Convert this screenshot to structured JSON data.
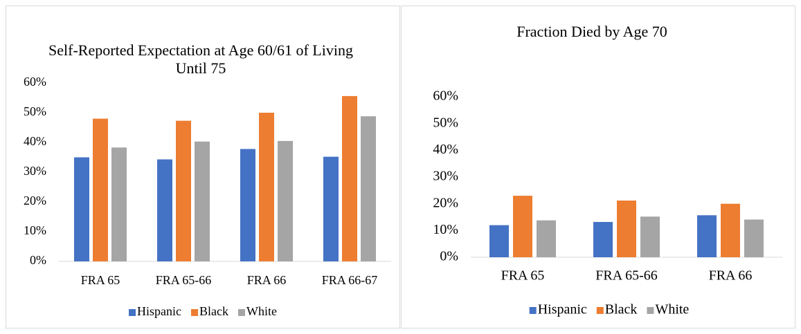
{
  "chart_data": [
    {
      "type": "bar",
      "title": "Self-Reported Expectation at Age 60/61 of Living Until 75",
      "categories": [
        "FRA 65",
        "FRA 65-66",
        "FRA 66",
        "FRA 66-67"
      ],
      "series": [
        {
          "name": "Hispanic",
          "color": "#4472c4",
          "values": [
            35,
            34.3,
            37.8,
            35.2
          ]
        },
        {
          "name": "Black",
          "color": "#ed7d31",
          "values": [
            48,
            47.3,
            50,
            55.6
          ]
        },
        {
          "name": "White",
          "color": "#a5a5a5",
          "values": [
            38.3,
            40.3,
            40.5,
            48.8
          ]
        }
      ],
      "ylim": [
        0,
        60
      ],
      "yticks": [
        {
          "value": 0,
          "label": "0%"
        },
        {
          "value": 10,
          "label": "10%"
        },
        {
          "value": 20,
          "label": "20%"
        },
        {
          "value": 30,
          "label": "30%"
        },
        {
          "value": 40,
          "label": "40%"
        },
        {
          "value": 50,
          "label": "50%"
        },
        {
          "value": 60,
          "label": "60%"
        }
      ],
      "legend": "bottom"
    },
    {
      "type": "bar",
      "title": "Fraction Died by Age 70",
      "categories": [
        "FRA 65",
        "FRA 65-66",
        "FRA 66"
      ],
      "series": [
        {
          "name": "Hispanic",
          "color": "#4472c4",
          "values": [
            12,
            13.2,
            15.7
          ]
        },
        {
          "name": "Black",
          "color": "#ed7d31",
          "values": [
            23,
            21.2,
            20
          ]
        },
        {
          "name": "White",
          "color": "#a5a5a5",
          "values": [
            13.8,
            15.2,
            14.1
          ]
        }
      ],
      "ylim": [
        0,
        60
      ],
      "yticks": [
        {
          "value": 0,
          "label": "0%"
        },
        {
          "value": 10,
          "label": "10%"
        },
        {
          "value": 20,
          "label": "20%"
        },
        {
          "value": 30,
          "label": "30%"
        },
        {
          "value": 40,
          "label": "40%"
        },
        {
          "value": 50,
          "label": "50%"
        },
        {
          "value": 60,
          "label": "60%"
        }
      ],
      "legend": "bottom"
    }
  ]
}
